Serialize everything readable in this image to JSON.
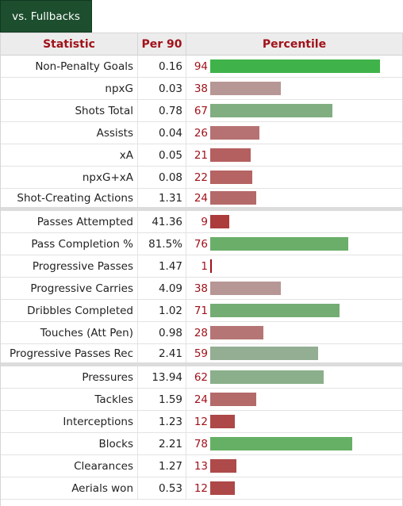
{
  "tab": {
    "label": "vs. Fullbacks"
  },
  "header": {
    "statistic": "Statistic",
    "per90": "Per 90",
    "percentile": "Percentile"
  },
  "rows": [
    {
      "stat": "Non-Penalty Goals",
      "per90": "0.16",
      "pct": "94",
      "color": "#3fb34a",
      "sep": false
    },
    {
      "stat": "npxG",
      "per90": "0.03",
      "pct": "38",
      "color": "#b79696",
      "sep": false
    },
    {
      "stat": "Shots Total",
      "per90": "0.78",
      "pct": "67",
      "color": "#80ae80",
      "sep": false
    },
    {
      "stat": "Assists",
      "per90": "0.04",
      "pct": "26",
      "color": "#b67272",
      "sep": false
    },
    {
      "stat": "xA",
      "per90": "0.05",
      "pct": "21",
      "color": "#b56060",
      "sep": false
    },
    {
      "stat": "npxG+xA",
      "per90": "0.08",
      "pct": "22",
      "color": "#b56363",
      "sep": false
    },
    {
      "stat": "Shot-Creating Actions",
      "per90": "1.31",
      "pct": "24",
      "color": "#b56a6a",
      "sep": true
    },
    {
      "stat": "Passes Attempted",
      "per90": "41.36",
      "pct": "9",
      "color": "#ac3b3b",
      "sep": false
    },
    {
      "stat": "Pass Completion %",
      "per90": "81.5%",
      "pct": "76",
      "color": "#6aae6a",
      "sep": false
    },
    {
      "stat": "Progressive Passes",
      "per90": "1.47",
      "pct": "1",
      "color": "#a0121a",
      "sep": false
    },
    {
      "stat": "Progressive Carries",
      "per90": "4.09",
      "pct": "38",
      "color": "#b79696",
      "sep": false
    },
    {
      "stat": "Dribbles Completed",
      "per90": "1.02",
      "pct": "71",
      "color": "#74ad74",
      "sep": false
    },
    {
      "stat": "Touches (Att Pen)",
      "per90": "0.98",
      "pct": "28",
      "color": "#b67575",
      "sep": false
    },
    {
      "stat": "Progressive Passes Rec",
      "per90": "2.41",
      "pct": "59",
      "color": "#93ae93",
      "sep": true
    },
    {
      "stat": "Pressures",
      "per90": "13.94",
      "pct": "62",
      "color": "#8aaf8a",
      "sep": false
    },
    {
      "stat": "Tackles",
      "per90": "1.59",
      "pct": "24",
      "color": "#b56a6a",
      "sep": false
    },
    {
      "stat": "Interceptions",
      "per90": "1.23",
      "pct": "12",
      "color": "#ae4747",
      "sep": false
    },
    {
      "stat": "Blocks",
      "per90": "2.21",
      "pct": "78",
      "color": "#65b065",
      "sep": false
    },
    {
      "stat": "Clearances",
      "per90": "1.27",
      "pct": "13",
      "color": "#ae4a4a",
      "sep": false
    },
    {
      "stat": "Aerials won",
      "per90": "0.53",
      "pct": "12",
      "color": "#ae4747",
      "sep": false
    }
  ]
}
